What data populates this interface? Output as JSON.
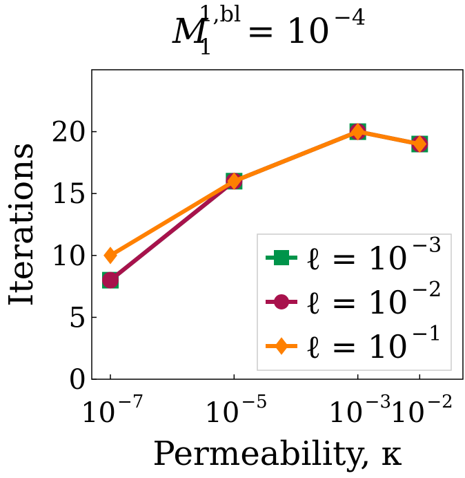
{
  "chart_data": {
    "type": "line",
    "title": {
      "base": "M",
      "sub": "1",
      "sup": "1,bl",
      "rhs": "= 10",
      "rhs_exp": "−4"
    },
    "xlabel": "Permeability, κ",
    "ylabel": "Iterations",
    "x_scale": "log",
    "x": [
      1e-07,
      1e-05,
      0.001,
      0.01
    ],
    "x_ticks": [
      {
        "value": 1e-07,
        "base": "10",
        "exp": "−7"
      },
      {
        "value": 1e-05,
        "base": "10",
        "exp": "−5"
      },
      {
        "value": 0.001,
        "base": "10",
        "exp": "−3"
      },
      {
        "value": 0.01,
        "base": "10",
        "exp": "−2"
      }
    ],
    "xlim": [
      5e-08,
      0.05
    ],
    "ylim": [
      0,
      25
    ],
    "y_ticks": [
      0,
      5,
      10,
      15,
      20
    ],
    "grid": false,
    "legend_position": "bottom-right",
    "series": [
      {
        "name": "ℓ = 10",
        "name_exp": "−3",
        "values": [
          8,
          16,
          20,
          19
        ],
        "color": "#00944a",
        "marker": "square"
      },
      {
        "name": "ℓ = 10",
        "name_exp": "−2",
        "values": [
          8,
          16,
          20,
          19
        ],
        "color": "#a8124c",
        "marker": "circle"
      },
      {
        "name": "ℓ = 10",
        "name_exp": "−1",
        "values": [
          10,
          16,
          20,
          19
        ],
        "color": "#ff8000",
        "marker": "diamond"
      }
    ]
  }
}
